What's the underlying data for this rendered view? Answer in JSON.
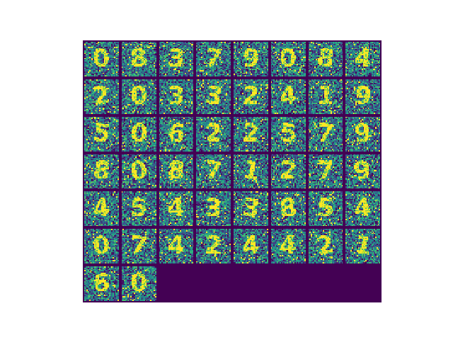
{
  "figure": {
    "colormap": "viridis",
    "background_color": "#440154",
    "rows": 7,
    "cols": 8,
    "tile_count": 50,
    "tile_pixels": 28,
    "digits": [
      "0",
      "8",
      "3",
      "7",
      "9",
      "0",
      "8",
      "4",
      "2",
      "0",
      "3",
      "3",
      "2",
      "4",
      "1",
      "9",
      "5",
      "0",
      "6",
      "2",
      "2",
      "5",
      "7",
      "9",
      "8",
      "0",
      "8",
      "7",
      "1",
      "2",
      "7",
      "9",
      "4",
      "5",
      "4",
      "3",
      "3",
      "8",
      "5",
      "4",
      "0",
      "7",
      "4",
      "2",
      "4",
      "4",
      "2",
      "1",
      "6",
      "0"
    ]
  }
}
